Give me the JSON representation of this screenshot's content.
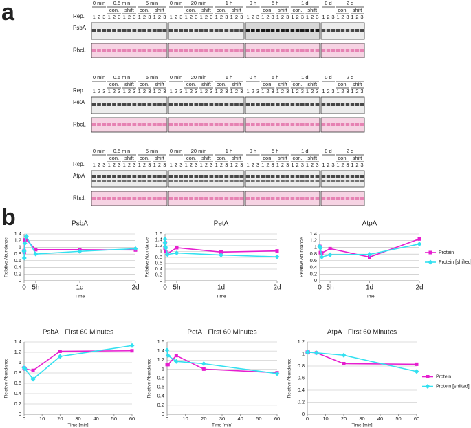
{
  "panel_labels": [
    "a",
    "b"
  ],
  "blots": {
    "rep": "Rep.",
    "loading": "RbcL",
    "lanes": [
      "1",
      "2",
      "3"
    ],
    "rows": [
      {
        "protein": "PsbA"
      },
      {
        "protein": "PetA"
      },
      {
        "protein": "AtpA"
      }
    ],
    "blocks": [
      {
        "groups": [
          {
            "time": "0 min"
          },
          {
            "time": "0.5 min",
            "subs": [
              "con.",
              "shift"
            ]
          },
          {
            "time": "5 min",
            "subs": [
              "con.",
              "shift"
            ]
          }
        ]
      },
      {
        "groups": [
          {
            "time": "0 min"
          },
          {
            "time": "20 min",
            "subs": [
              "con.",
              "shift"
            ]
          },
          {
            "time": "1 h",
            "subs": [
              "con.",
              "shift"
            ]
          }
        ]
      },
      {
        "groups": [
          {
            "time": "0 h"
          },
          {
            "time": "5 h",
            "subs": [
              "con.",
              "shift"
            ]
          },
          {
            "time": "1 d",
            "subs": [
              "con.",
              "shift"
            ]
          }
        ]
      },
      {
        "groups": [
          {
            "time": "0 d"
          },
          {
            "time": "2 d",
            "subs": [
              "con.",
              "shift"
            ]
          }
        ]
      }
    ]
  },
  "chart_data": [
    {
      "type": "line",
      "title": "PsbA",
      "xlabel": "Time",
      "ylabel": "Relative Abundance",
      "x": [
        0,
        0.0083,
        0.0833,
        0.3333,
        1,
        5,
        24,
        48
      ],
      "xlim": [
        0,
        48
      ],
      "xticks": [
        {
          "value": 0,
          "label": "0"
        },
        {
          "value": 5,
          "label": "5h"
        },
        {
          "value": 24,
          "label": "1d"
        },
        {
          "value": 48,
          "label": "2d"
        }
      ],
      "ylim": [
        0,
        1.4
      ],
      "yticks": [
        0,
        0.2,
        0.4,
        0.6,
        0.8,
        1,
        1.2,
        1.4
      ],
      "grid": true,
      "legend": false,
      "series": [
        {
          "color": "#e61ecf",
          "marker": "square",
          "values": [
            0.9,
            0.88,
            0.85,
            1.22,
            1.23,
            0.93,
            0.93,
            0.92
          ]
        },
        {
          "color": "#33e0f0",
          "marker": "diamond",
          "values": [
            0.9,
            0.88,
            0.68,
            1.12,
            1.33,
            0.8,
            0.88,
            0.96
          ]
        }
      ]
    },
    {
      "type": "line",
      "title": "PetA",
      "xlabel": "Time",
      "ylabel": "Relative Abundance",
      "x": [
        0,
        0.0083,
        0.0833,
        0.3333,
        1,
        5,
        24,
        48
      ],
      "xlim": [
        0,
        48
      ],
      "xticks": [
        {
          "value": 0,
          "label": "0"
        },
        {
          "value": 5,
          "label": "5h"
        },
        {
          "value": 24,
          "label": "1d"
        },
        {
          "value": 48,
          "label": "2d"
        }
      ],
      "ylim": [
        0,
        1.6
      ],
      "yticks": [
        0,
        0.2,
        0.4,
        0.6,
        0.8,
        1,
        1.2,
        1.4,
        1.6
      ],
      "grid": true,
      "legend": false,
      "series": [
        {
          "color": "#e61ecf",
          "marker": "square",
          "values": [
            1.1,
            1.1,
            1.3,
            1.0,
            0.92,
            1.13,
            0.98,
            1.02
          ]
        },
        {
          "color": "#33e0f0",
          "marker": "diamond",
          "values": [
            1.42,
            1.3,
            1.17,
            1.12,
            0.9,
            0.95,
            0.88,
            0.82
          ]
        }
      ]
    },
    {
      "type": "line",
      "title": "AtpA",
      "xlabel": "Time",
      "ylabel": "Relative Abundance",
      "x": [
        0,
        0.0083,
        0.0833,
        0.3333,
        1,
        5,
        24,
        48
      ],
      "xlim": [
        0,
        48
      ],
      "xticks": [
        {
          "value": 0,
          "label": "0"
        },
        {
          "value": 5,
          "label": "5h"
        },
        {
          "value": 24,
          "label": "1d"
        },
        {
          "value": 48,
          "label": "2d"
        }
      ],
      "ylim": [
        0,
        1.4
      ],
      "yticks": [
        0,
        0.2,
        0.4,
        0.6,
        0.8,
        1,
        1.2,
        1.4
      ],
      "grid": true,
      "legend": "right",
      "series": [
        {
          "name": "Protein",
          "color": "#e61ecf",
          "marker": "square",
          "values": [
            1.03,
            1.03,
            1.02,
            0.84,
            0.83,
            0.96,
            0.71,
            1.25
          ]
        },
        {
          "name": "Protein [shifted]",
          "color": "#33e0f0",
          "marker": "diamond",
          "values": [
            1.03,
            1.03,
            1.02,
            0.98,
            0.71,
            0.78,
            0.79,
            1.1
          ]
        }
      ]
    },
    {
      "type": "line",
      "title": "PsbA - First 60 Minutes",
      "xlabel": "Time [min]",
      "ylabel": "Relative Abundance",
      "x": [
        0,
        0.5,
        5,
        20,
        60
      ],
      "xlim": [
        0,
        60
      ],
      "xticks": [
        0,
        10,
        20,
        30,
        40,
        50,
        60
      ],
      "ylim": [
        0,
        1.4
      ],
      "yticks": [
        0,
        0.2,
        0.4,
        0.6,
        0.8,
        1,
        1.2,
        1.4
      ],
      "grid": true,
      "legend": false,
      "series": [
        {
          "color": "#e61ecf",
          "marker": "square",
          "values": [
            0.9,
            0.88,
            0.85,
            1.22,
            1.23
          ]
        },
        {
          "color": "#33e0f0",
          "marker": "diamond",
          "values": [
            0.9,
            0.88,
            0.68,
            1.12,
            1.33
          ]
        }
      ]
    },
    {
      "type": "line",
      "title": "PetA - First 60 Minutes",
      "xlabel": "Time [min]",
      "ylabel": "Relative Abundance",
      "x": [
        0,
        0.5,
        5,
        20,
        60
      ],
      "xlim": [
        0,
        60
      ],
      "xticks": [
        0,
        10,
        20,
        30,
        40,
        50,
        60
      ],
      "ylim": [
        0,
        1.6
      ],
      "yticks": [
        0,
        0.2,
        0.4,
        0.6,
        0.8,
        1,
        1.2,
        1.4,
        1.6
      ],
      "grid": true,
      "legend": false,
      "series": [
        {
          "color": "#e61ecf",
          "marker": "square",
          "values": [
            1.1,
            1.1,
            1.3,
            1.0,
            0.92
          ]
        },
        {
          "color": "#33e0f0",
          "marker": "diamond",
          "values": [
            1.42,
            1.3,
            1.17,
            1.12,
            0.9
          ]
        }
      ]
    },
    {
      "type": "line",
      "title": "AtpA - First 60 Minutes",
      "xlabel": "Time [min]",
      "ylabel": "Relative Abundance",
      "x": [
        0,
        0.5,
        5,
        20,
        60
      ],
      "xlim": [
        0,
        60
      ],
      "xticks": [
        0,
        10,
        20,
        30,
        40,
        50,
        60
      ],
      "ylim": [
        0,
        1.2
      ],
      "yticks": [
        0,
        0.2,
        0.4,
        0.6,
        0.8,
        1,
        1.2
      ],
      "grid": true,
      "legend": "right",
      "series": [
        {
          "name": "Protein",
          "color": "#e61ecf",
          "marker": "square",
          "values": [
            1.03,
            1.03,
            1.02,
            0.84,
            0.83
          ]
        },
        {
          "name": "Protein [shifted]",
          "color": "#33e0f0",
          "marker": "diamond",
          "values": [
            1.03,
            1.03,
            1.02,
            0.98,
            0.71
          ]
        }
      ]
    }
  ]
}
